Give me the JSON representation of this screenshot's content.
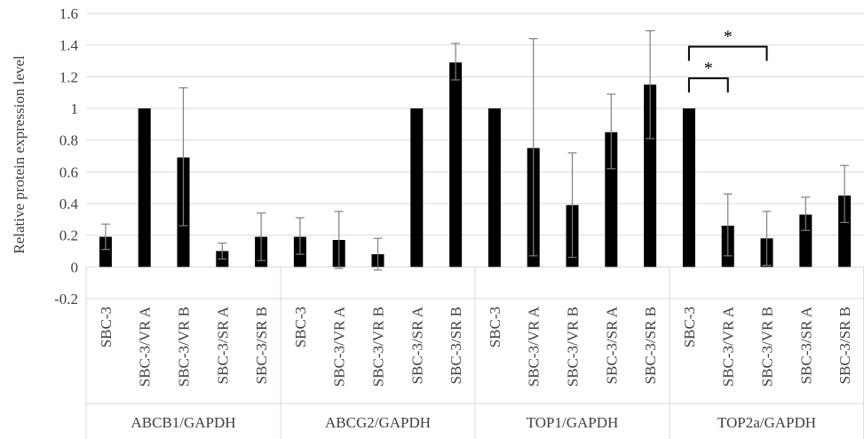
{
  "chart_data": {
    "type": "bar",
    "title": "",
    "ylabel": "Relative protein expression level",
    "xlabel": "",
    "ylim": [
      -0.2,
      1.6
    ],
    "yticks": [
      "-0.2",
      "0",
      "0.2",
      "0.4",
      "0.6",
      "0.8",
      "1",
      "1.2",
      "1.4",
      "1.6"
    ],
    "grid": true,
    "groups": [
      {
        "name": "ABCB1/GAPDH",
        "categories": [
          "SBC-3",
          "SBC-3/VR A",
          "SBC-3/VR B",
          "SBC-3/SR A",
          "SBC-3/SR B"
        ],
        "values": [
          0.19,
          1.0,
          0.69,
          0.1,
          0.19
        ],
        "error_low": [
          0.11,
          1.0,
          0.26,
          0.05,
          0.04
        ],
        "error_high": [
          0.27,
          1.0,
          1.13,
          0.15,
          0.34
        ]
      },
      {
        "name": "ABCG2/GAPDH",
        "categories": [
          "SBC-3",
          "SBC-3/VR A",
          "SBC-3/VR B",
          "SBC-3/SR A",
          "SBC-3/SR B"
        ],
        "values": [
          0.19,
          0.17,
          0.08,
          1.0,
          1.29
        ],
        "error_low": [
          0.08,
          -0.01,
          -0.02,
          1.0,
          1.18
        ],
        "error_high": [
          0.31,
          0.35,
          0.18,
          1.0,
          1.41
        ]
      },
      {
        "name": "TOP1/GAPDH",
        "categories": [
          "SBC-3",
          "SBC-3/VR A",
          "SBC-3/VR B",
          "SBC-3/SR A",
          "SBC-3/SR B"
        ],
        "values": [
          1.0,
          0.75,
          0.39,
          0.85,
          1.15
        ],
        "error_low": [
          1.0,
          0.07,
          0.06,
          0.62,
          0.81
        ],
        "error_high": [
          1.0,
          1.44,
          0.72,
          1.09,
          1.49
        ]
      },
      {
        "name": "TOP2a/GAPDH",
        "categories": [
          "SBC-3",
          "SBC-3/VR A",
          "SBC-3/VR B",
          "SBC-3/SR A",
          "SBC-3/SR B"
        ],
        "values": [
          1.0,
          0.26,
          0.18,
          0.33,
          0.45
        ],
        "error_low": [
          1.0,
          0.07,
          0.01,
          0.23,
          0.28
        ],
        "error_high": [
          1.0,
          0.46,
          0.35,
          0.44,
          0.64
        ]
      }
    ],
    "annotations": [
      {
        "label": "*",
        "group": 3,
        "from": 0,
        "to": 1,
        "y": 1.19
      },
      {
        "label": "*",
        "group": 3,
        "from": 0,
        "to": 2,
        "y": 1.39
      }
    ],
    "colors": {
      "bar": "#000000",
      "grid": "#d9d9d9",
      "error": "#7f7f7f",
      "axis_text": "#404040",
      "bracket": "#000000"
    }
  }
}
